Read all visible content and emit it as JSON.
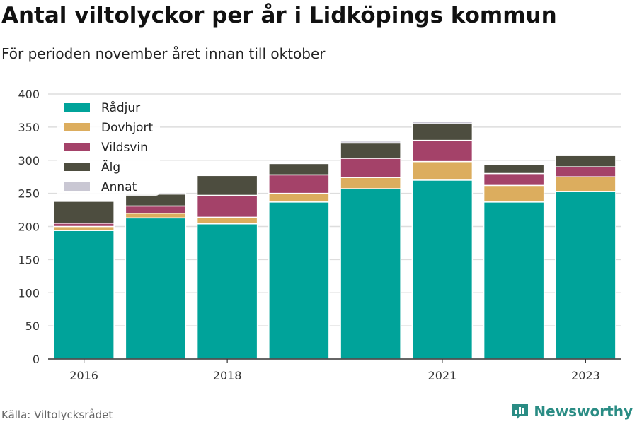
{
  "header": {
    "title": "Antal viltolyckor per år i Lidköpings kommun",
    "subtitle": "För perioden november året innan till oktober"
  },
  "footer": {
    "source": "Källa: Viltolycksrådet",
    "brand": "Newsworthy"
  },
  "colors": {
    "Rådjur": "#00a39a",
    "Dovhjort": "#dcad5e",
    "Vildsvin": "#a44269",
    "Älg": "#4d4d3f",
    "Annat": "#c9c7d3",
    "brand": "#2a8c84"
  },
  "chart_data": {
    "type": "bar",
    "stacked": true,
    "categories": [
      "2016",
      "2017",
      "2018",
      "2019",
      "2020",
      "2021",
      "2022",
      "2023"
    ],
    "x_tick_labels": [
      "2016",
      "",
      "2018",
      "",
      "",
      "2021",
      "",
      "2023"
    ],
    "series": [
      {
        "name": "Rådjur",
        "values": [
          194,
          213,
          204,
          237,
          257,
          270,
          237,
          253
        ]
      },
      {
        "name": "Dovhjort",
        "values": [
          6,
          7,
          10,
          13,
          17,
          28,
          25,
          22
        ]
      },
      {
        "name": "Vildsvin",
        "values": [
          5,
          11,
          33,
          28,
          29,
          32,
          18,
          15
        ]
      },
      {
        "name": "Älg",
        "values": [
          33,
          18,
          30,
          17,
          23,
          25,
          14,
          17
        ]
      },
      {
        "name": "Annat",
        "values": [
          0,
          2,
          0,
          0,
          3,
          4,
          0,
          0
        ]
      }
    ],
    "ylim": [
      0,
      400
    ],
    "yticks": [
      0,
      50,
      100,
      150,
      200,
      250,
      300,
      350,
      400
    ],
    "grid": true,
    "legend": "top-left"
  }
}
